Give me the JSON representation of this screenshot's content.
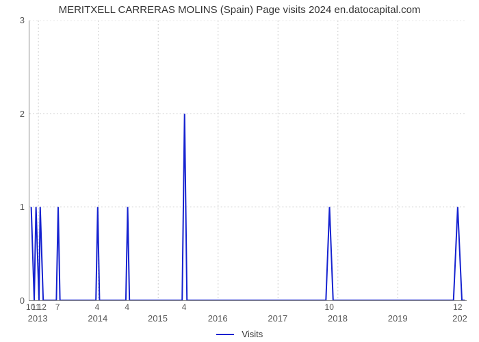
{
  "chart": {
    "type": "line",
    "title": "MERITXELL CARRERAS MOLINS (Spain) Page visits 2024 en.datocapital.com",
    "title_fontsize": 15,
    "background_color": "#ffffff",
    "grid_color": "#cccccc",
    "axis_color": "#888888",
    "label_color": "#555555",
    "ylim": [
      0,
      3
    ],
    "ytick_positions": [
      0,
      1,
      2,
      3
    ],
    "ytick_labels": [
      "0",
      "1",
      "2",
      "3"
    ],
    "xlim": [
      2012.85,
      2020.15
    ],
    "x_year_ticks": [
      2013,
      2014,
      2015,
      2016,
      2017,
      2018,
      2019
    ],
    "x_year_labels": [
      "2013",
      "2014",
      "2015",
      "2016",
      "2017",
      "2018",
      "2019"
    ],
    "x_end_label": "202",
    "series": {
      "name": "Visits",
      "color": "#1522d0",
      "line_width": 2,
      "points": [
        [
          2012.88,
          1
        ],
        [
          2012.93,
          0
        ],
        [
          2012.96,
          1
        ],
        [
          2013.01,
          0
        ],
        [
          2013.03,
          1
        ],
        [
          2013.08,
          0
        ],
        [
          2013.3,
          0
        ],
        [
          2013.33,
          1
        ],
        [
          2013.36,
          0
        ],
        [
          2013.96,
          0
        ],
        [
          2013.99,
          1
        ],
        [
          2014.02,
          0
        ],
        [
          2014.46,
          0
        ],
        [
          2014.49,
          1
        ],
        [
          2014.52,
          0
        ],
        [
          2015.4,
          0
        ],
        [
          2015.44,
          2
        ],
        [
          2015.48,
          0
        ],
        [
          2017.8,
          0
        ],
        [
          2017.86,
          1
        ],
        [
          2017.92,
          0
        ],
        [
          2019.93,
          0
        ],
        [
          2020.0,
          1
        ],
        [
          2020.07,
          0
        ],
        [
          2020.12,
          0
        ]
      ],
      "value_labels": [
        {
          "x": 2012.88,
          "text": "10"
        },
        {
          "x": 2012.97,
          "text": "11"
        },
        {
          "x": 2013.07,
          "text": "12"
        },
        {
          "x": 2013.33,
          "text": "7"
        },
        {
          "x": 2013.99,
          "text": "4"
        },
        {
          "x": 2014.49,
          "text": "4"
        },
        {
          "x": 2015.44,
          "text": "4"
        },
        {
          "x": 2017.86,
          "text": "10"
        },
        {
          "x": 2020.0,
          "text": "12"
        }
      ]
    },
    "legend_label": "Visits"
  }
}
